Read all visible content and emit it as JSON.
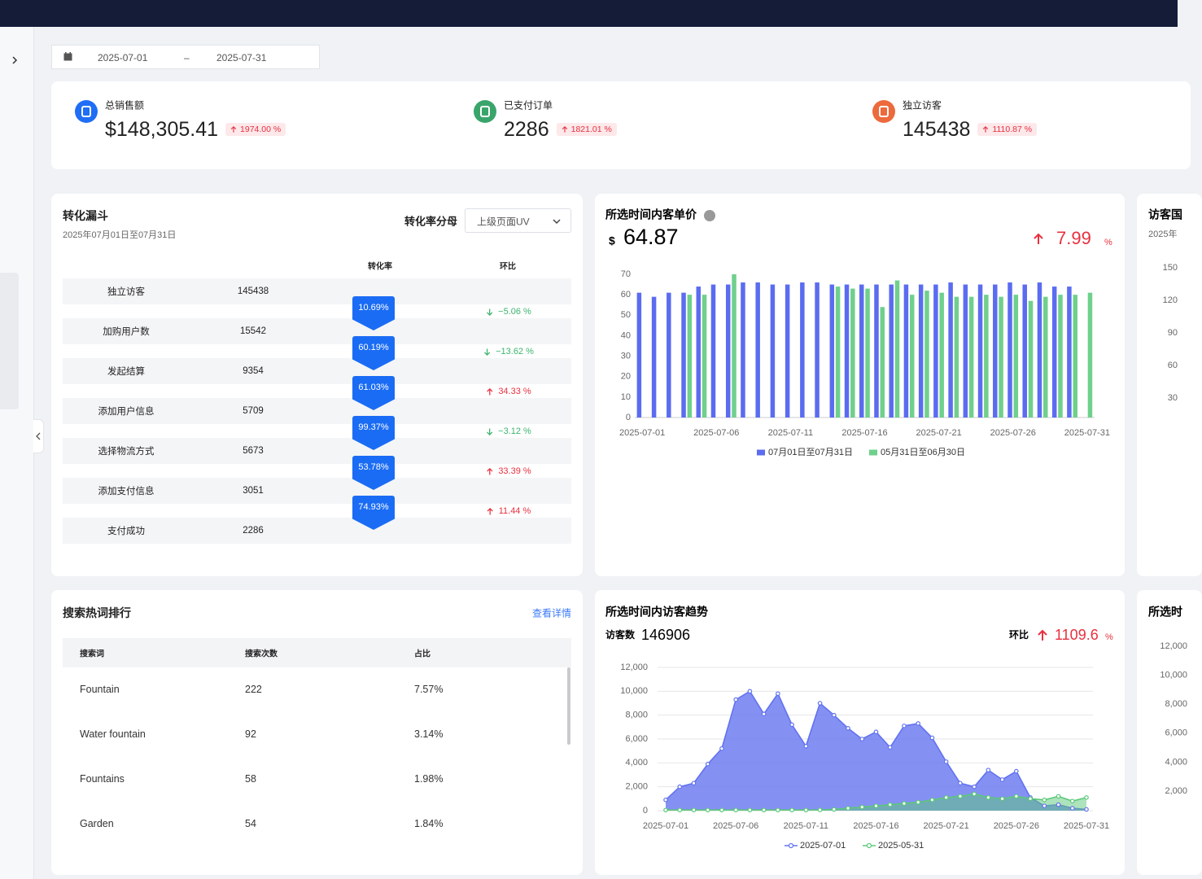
{
  "date_range": {
    "start": "2025-07-01",
    "separator": "–",
    "end": "2025-07-31"
  },
  "kpis": [
    {
      "label": "总销售额",
      "value": "$148,305.41",
      "change": "1974.00 %"
    },
    {
      "label": "已支付订单",
      "value": 2286,
      "change": "1821.01 %"
    },
    {
      "label": "独立访客",
      "value": 145438,
      "change": "1110.87 %"
    }
  ],
  "funnel": {
    "title": "转化漏斗",
    "subtitle": "2025年07月01日至07月31日",
    "denominator_label": "转化率分母",
    "denominator_option": "上级页面UV",
    "columns": [
      "转化率",
      "环比"
    ],
    "steps": [
      {
        "name": "独立访客",
        "count": 145438
      },
      {
        "name": "加购用户数",
        "count": 15542
      },
      {
        "name": "发起结算",
        "count": 9354
      },
      {
        "name": "添加用户信息",
        "count": 5709
      },
      {
        "name": "选择物流方式",
        "count": 5673
      },
      {
        "name": "添加支付信息",
        "count": 3051
      },
      {
        "name": "支付成功",
        "count": 2286
      }
    ],
    "conversions": [
      {
        "rate": "10.69%",
        "change": "−5.06 %",
        "trend": "down"
      },
      {
        "rate": "60.19%",
        "change": "−13.62 %",
        "trend": "down"
      },
      {
        "rate": "61.03%",
        "change": "34.33 %",
        "trend": "up"
      },
      {
        "rate": "99.37%",
        "change": "−3.12 %",
        "trend": "down"
      },
      {
        "rate": "53.78%",
        "change": "33.39 %",
        "trend": "up"
      },
      {
        "rate": "74.93%",
        "change": "11.44 %",
        "trend": "up"
      }
    ]
  },
  "search": {
    "title": "搜索热词排行",
    "link": "查看详情",
    "columns": [
      "搜索词",
      "搜索次数",
      "占比"
    ],
    "rows": [
      [
        "Fountain",
        222,
        "7.57%"
      ],
      [
        "Water fountain",
        92,
        "3.14%"
      ],
      [
        "Fountains",
        58,
        "1.98%"
      ],
      [
        "Garden",
        54,
        "1.84%"
      ]
    ]
  },
  "side_cards": [
    {
      "title": "访客国",
      "subtitle": "2025年",
      "yticks": [
        150,
        120,
        90,
        60,
        30
      ]
    },
    {
      "title": "所选时",
      "yticks": [
        {
          "value": 12000,
          "label": "12,000"
        },
        {
          "value": 10000,
          "label": "10,000"
        },
        {
          "value": 8000,
          "label": "8,000"
        },
        {
          "value": 6000,
          "label": "6,000"
        },
        {
          "value": 4000,
          "label": "4,000"
        },
        {
          "value": 2000,
          "label": "2,000"
        }
      ]
    }
  ],
  "chart_data": [
    {
      "type": "bar",
      "title": "所选时间内客单价",
      "currency": "$",
      "value": 64.87,
      "change": 7.99,
      "change_unit": "%",
      "categories": [
        "2025-07-01",
        null,
        null,
        null,
        null,
        "2025-07-06",
        null,
        null,
        null,
        null,
        "2025-07-11",
        null,
        null,
        null,
        null,
        "2025-07-16",
        null,
        null,
        null,
        null,
        "2025-07-21",
        null,
        null,
        null,
        null,
        "2025-07-26",
        null,
        null,
        null,
        null,
        "2025-07-31"
      ],
      "series": [
        {
          "name": "07月01日至07月31日",
          "color": "#5b6cf0",
          "values": [
            61,
            59,
            61,
            61,
            64,
            65,
            65,
            66,
            66,
            65,
            65,
            66,
            66,
            65,
            65,
            65,
            65,
            65,
            65,
            65,
            65,
            66,
            65,
            65,
            65,
            66,
            65,
            66,
            64,
            64,
            null
          ]
        },
        {
          "name": "05月31日至06月30日",
          "color": "#6fd08c",
          "values": [
            null,
            null,
            null,
            60,
            60,
            null,
            70,
            null,
            null,
            null,
            null,
            null,
            null,
            64,
            63,
            63,
            54,
            67,
            60,
            62,
            61,
            59,
            59,
            60,
            59,
            60,
            57,
            59,
            60,
            60,
            61
          ]
        }
      ],
      "ylim": [
        0,
        70
      ],
      "yticks": [
        0,
        10,
        20,
        30,
        40,
        50,
        60,
        70
      ],
      "grid": false
    },
    {
      "type": "area",
      "title": "所选时间内访客趋势",
      "metric_label": "访客数",
      "total": 146906,
      "change_label": "环比",
      "change": 1109.6,
      "change_unit": "%",
      "categories": [
        "2025-07-01",
        null,
        null,
        null,
        null,
        "2025-07-06",
        null,
        null,
        null,
        null,
        "2025-07-11",
        null,
        null,
        null,
        null,
        "2025-07-16",
        null,
        null,
        null,
        null,
        "2025-07-21",
        null,
        null,
        null,
        null,
        "2025-07-26",
        null,
        null,
        null,
        null,
        "2025-07-31"
      ],
      "series": [
        {
          "name": "2025-07-01",
          "color": "#6272f0",
          "values": [
            900,
            2000,
            2300,
            3900,
            5200,
            9300,
            10000,
            8100,
            9800,
            7200,
            5400,
            9000,
            8000,
            6900,
            6000,
            6600,
            5300,
            7100,
            7300,
            6100,
            4100,
            2300,
            2000,
            3400,
            2600,
            3300,
            1100,
            400,
            500,
            200,
            100
          ]
        },
        {
          "name": "2025-05-31",
          "color": "#5bc87a",
          "values": [
            50,
            50,
            50,
            50,
            50,
            50,
            50,
            50,
            50,
            50,
            50,
            60,
            100,
            200,
            300,
            400,
            500,
            600,
            700,
            900,
            1100,
            1200,
            1400,
            1100,
            1000,
            1200,
            1000,
            900,
            1200,
            800,
            1100
          ]
        }
      ],
      "ylim": [
        0,
        12000
      ],
      "yticks": [
        0,
        {
          "value": 2000,
          "label": "2,000"
        },
        {
          "value": 4000,
          "label": "4,000"
        },
        {
          "value": 6000,
          "label": "6,000"
        },
        {
          "value": 8000,
          "label": "8,000"
        },
        {
          "value": 10000,
          "label": "10,000"
        },
        {
          "value": 12000,
          "label": "12,000"
        }
      ],
      "grid": true
    }
  ]
}
